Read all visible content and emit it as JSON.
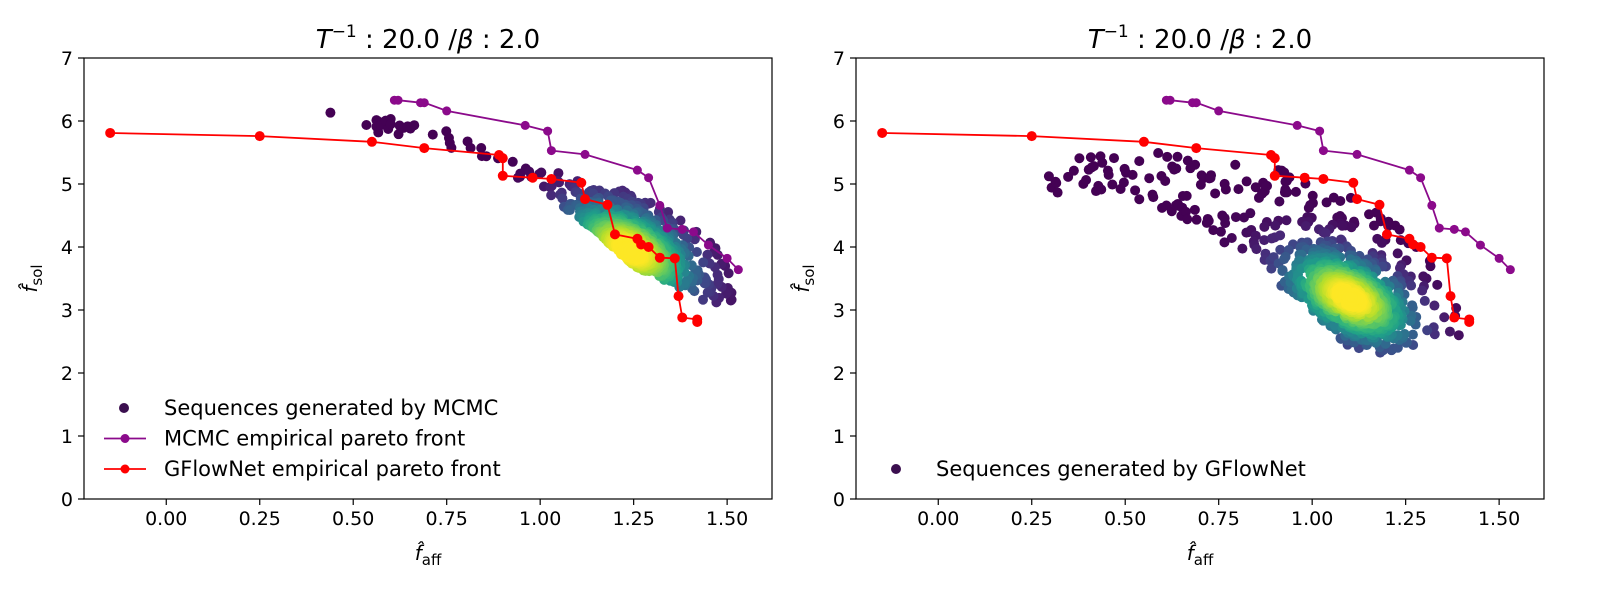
{
  "chart_data": [
    {
      "type": "scatter",
      "title_main": "T",
      "title_sup": "−1",
      "title_rest": " : 20.0 /",
      "title_beta": "β",
      "title_tail": " : 2.0",
      "xlabel_base": "f̂",
      "xlabel_sub": "aff",
      "ylabel_base": "f̂",
      "ylabel_sub": "sol",
      "xlim": [
        -0.22,
        1.62
      ],
      "ylim": [
        0,
        7
      ],
      "xticks": [
        "0.00",
        "0.25",
        "0.50",
        "0.75",
        "1.00",
        "1.25",
        "1.50"
      ],
      "yticks": [
        "0",
        "1",
        "2",
        "3",
        "4",
        "5",
        "6",
        "7"
      ],
      "legend_position": "lower-left",
      "legend": [
        {
          "label": "Sequences generated by MCMC",
          "kind": "scatter",
          "color": "#3b0f4f"
        },
        {
          "label": "MCMC empirical pareto front",
          "kind": "line",
          "color": "#8b0a8b"
        },
        {
          "label": "GFlowNet empirical pareto front",
          "kind": "line",
          "color": "#ff0000"
        }
      ],
      "scatter_cloud": {
        "name": "Sequences generated by MCMC",
        "colormap": "viridis",
        "density_peak": [
          1.24,
          3.95
        ],
        "outline": [
          [
            0.4,
            6.25
          ],
          [
            0.48,
            5.95
          ],
          [
            0.6,
            6.05
          ],
          [
            0.75,
            5.85
          ],
          [
            0.85,
            5.55
          ],
          [
            1.0,
            5.25
          ],
          [
            1.15,
            5.05
          ],
          [
            1.25,
            4.85
          ],
          [
            1.33,
            4.6
          ],
          [
            1.42,
            4.3
          ],
          [
            1.5,
            3.8
          ],
          [
            1.52,
            3.15
          ],
          [
            1.45,
            3.1
          ],
          [
            1.36,
            3.4
          ],
          [
            1.25,
            3.7
          ],
          [
            1.14,
            4.3
          ],
          [
            1.0,
            4.9
          ],
          [
            0.86,
            5.3
          ],
          [
            0.7,
            5.7
          ],
          [
            0.55,
            5.8
          ]
        ]
      },
      "fronts": [
        {
          "name": "MCMC empirical pareto front",
          "color": "#8b0a8b",
          "x": [
            0.61,
            0.62,
            0.68,
            0.69,
            0.75,
            0.96,
            1.02,
            1.03,
            1.12,
            1.26,
            1.29,
            1.32,
            1.34,
            1.38,
            1.41,
            1.45,
            1.5,
            1.53
          ],
          "y": [
            6.33,
            6.33,
            6.29,
            6.29,
            6.16,
            5.93,
            5.84,
            5.53,
            5.47,
            5.22,
            5.1,
            4.66,
            4.3,
            4.28,
            4.24,
            4.03,
            3.82,
            3.64
          ]
        },
        {
          "name": "GFlowNet empirical pareto front",
          "color": "#ff0000",
          "x": [
            -0.15,
            0.25,
            0.55,
            0.69,
            0.89,
            0.9,
            0.9,
            0.98,
            1.03,
            1.11,
            1.12,
            1.18,
            1.2,
            1.26,
            1.27,
            1.29,
            1.32,
            1.36,
            1.37,
            1.38,
            1.42,
            1.42
          ],
          "y": [
            5.81,
            5.76,
            5.67,
            5.57,
            5.46,
            5.41,
            5.13,
            5.1,
            5.08,
            5.02,
            4.76,
            4.67,
            4.2,
            4.13,
            4.04,
            4.0,
            3.83,
            3.82,
            3.22,
            2.88,
            2.85,
            2.81
          ]
        }
      ]
    },
    {
      "type": "scatter",
      "title_main": "T",
      "title_sup": "−1",
      "title_rest": " : 20.0 /",
      "title_beta": "β",
      "title_tail": " : 2.0",
      "xlabel_base": "f̂",
      "xlabel_sub": "aff",
      "ylabel_base": "f̂",
      "ylabel_sub": "sol",
      "xlim": [
        -0.22,
        1.62
      ],
      "ylim": [
        0,
        7
      ],
      "xticks": [
        "0.00",
        "0.25",
        "0.50",
        "0.75",
        "1.00",
        "1.25",
        "1.50"
      ],
      "yticks": [
        "0",
        "1",
        "2",
        "3",
        "4",
        "5",
        "6",
        "7"
      ],
      "legend_position": "lower-left",
      "legend": [
        {
          "label": "Sequences generated by GFlowNet",
          "kind": "scatter",
          "color": "#3b0f4f"
        }
      ],
      "scatter_cloud": {
        "name": "Sequences generated by GFlowNet",
        "colormap": "viridis",
        "density_peak": [
          1.1,
          3.2
        ],
        "outline": [
          [
            0.27,
            5.0
          ],
          [
            0.35,
            5.4
          ],
          [
            0.55,
            5.55
          ],
          [
            0.7,
            5.4
          ],
          [
            0.9,
            5.3
          ],
          [
            1.05,
            5.0
          ],
          [
            1.2,
            4.5
          ],
          [
            1.32,
            3.9
          ],
          [
            1.38,
            3.2
          ],
          [
            1.4,
            2.6
          ],
          [
            1.3,
            2.5
          ],
          [
            1.18,
            2.25
          ],
          [
            1.1,
            2.4
          ],
          [
            1.0,
            3.0
          ],
          [
            0.85,
            3.7
          ],
          [
            0.7,
            4.3
          ],
          [
            0.55,
            4.7
          ],
          [
            0.4,
            4.9
          ],
          [
            0.3,
            4.8
          ]
        ]
      },
      "fronts": [
        {
          "name": "MCMC empirical pareto front",
          "color": "#8b0a8b",
          "x": [
            0.61,
            0.62,
            0.68,
            0.69,
            0.75,
            0.96,
            1.02,
            1.03,
            1.12,
            1.26,
            1.29,
            1.32,
            1.34,
            1.38,
            1.41,
            1.45,
            1.5,
            1.53
          ],
          "y": [
            6.33,
            6.33,
            6.29,
            6.29,
            6.16,
            5.93,
            5.84,
            5.53,
            5.47,
            5.22,
            5.1,
            4.66,
            4.3,
            4.28,
            4.24,
            4.03,
            3.82,
            3.64
          ]
        },
        {
          "name": "GFlowNet empirical pareto front",
          "color": "#ff0000",
          "x": [
            -0.15,
            0.25,
            0.55,
            0.69,
            0.89,
            0.9,
            0.9,
            0.98,
            1.03,
            1.11,
            1.12,
            1.18,
            1.2,
            1.26,
            1.27,
            1.29,
            1.32,
            1.36,
            1.37,
            1.38,
            1.42,
            1.42
          ],
          "y": [
            5.81,
            5.76,
            5.67,
            5.57,
            5.46,
            5.41,
            5.13,
            5.1,
            5.08,
            5.02,
            4.76,
            4.67,
            4.2,
            4.13,
            4.04,
            4.0,
            3.83,
            3.82,
            3.22,
            2.88,
            2.85,
            2.81
          ]
        }
      ]
    }
  ]
}
